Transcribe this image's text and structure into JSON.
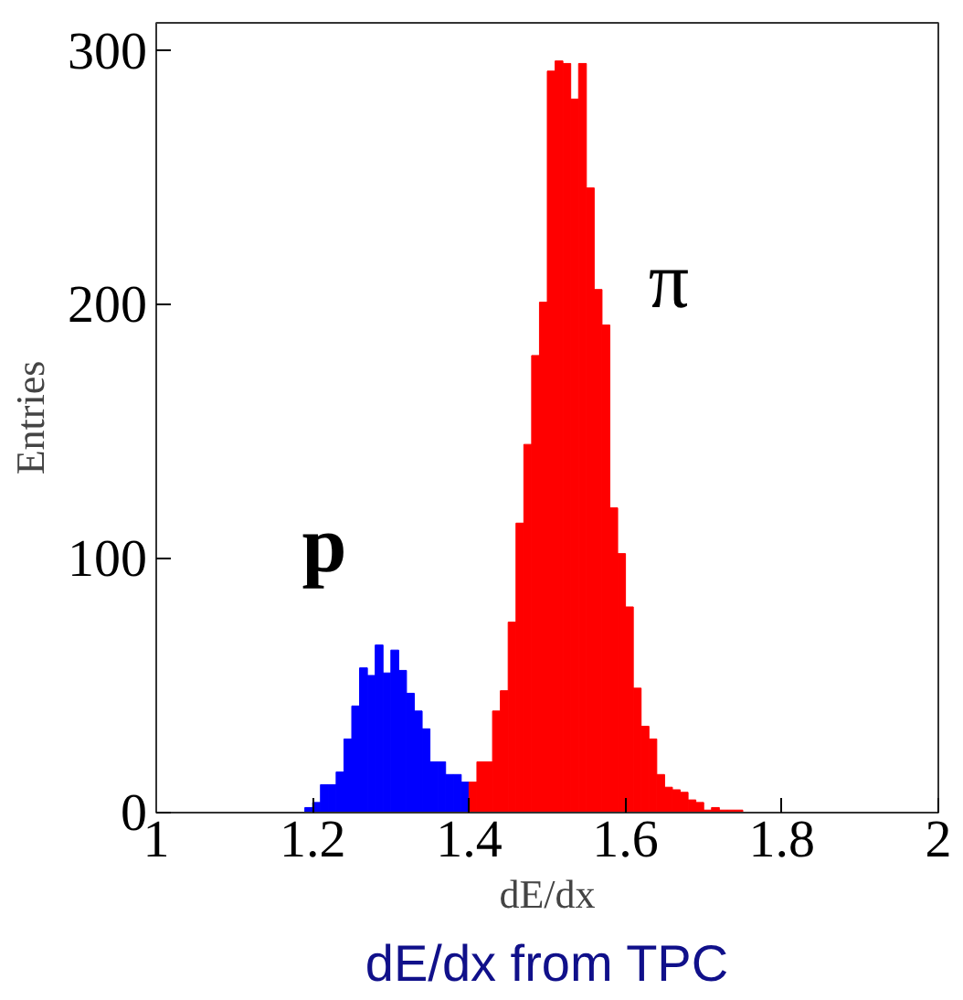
{
  "chart_data": {
    "type": "histogram",
    "xlabel": "dE/dx",
    "ylabel": "Entries",
    "annotations": [
      "dE/dx from TPC"
    ],
    "bins": [
      1.19,
      1.2,
      1.21,
      1.22,
      1.23,
      1.24,
      1.25,
      1.26,
      1.27,
      1.28,
      1.29,
      1.3,
      1.31,
      1.32,
      1.33,
      1.34,
      1.35,
      1.36,
      1.37,
      1.38,
      1.39,
      1.4,
      1.41,
      1.42,
      1.43,
      1.44,
      1.45,
      1.46,
      1.47,
      1.48,
      1.49,
      1.5,
      1.51,
      1.52,
      1.53,
      1.54,
      1.55,
      1.56,
      1.57,
      1.58,
      1.59,
      1.6,
      1.61,
      1.62,
      1.63,
      1.64,
      1.65,
      1.66,
      1.67,
      1.68,
      1.69,
      1.7,
      1.71,
      1.72,
      1.73,
      1.74,
      1.75
    ],
    "series": [
      {
        "name": "p",
        "color": "#0000ff",
        "values": [
          2,
          4,
          11,
          11,
          16,
          29,
          42,
          57,
          54,
          66,
          55,
          64,
          56,
          47,
          40,
          33,
          20,
          20,
          15,
          15,
          12,
          null,
          null,
          null,
          null,
          null,
          null,
          null,
          null,
          null,
          null,
          null,
          null,
          null,
          null,
          null,
          null,
          null,
          null,
          null,
          null,
          null,
          null,
          null,
          null,
          null,
          null,
          null,
          null,
          null,
          null,
          null,
          null,
          null,
          null,
          null
        ]
      },
      {
        "name": "π",
        "color": "#ff0000",
        "values": [
          null,
          null,
          null,
          null,
          null,
          null,
          null,
          null,
          null,
          null,
          null,
          null,
          null,
          null,
          null,
          null,
          null,
          null,
          null,
          null,
          null,
          12,
          20,
          20,
          40,
          48,
          75,
          114,
          145,
          180,
          201,
          292,
          296,
          295,
          281,
          295,
          246,
          206,
          192,
          120,
          102,
          81,
          49,
          34,
          29,
          15,
          10,
          9,
          8,
          5,
          4,
          1,
          2,
          1,
          1,
          1
        ]
      }
    ],
    "xlim": [
      1,
      2
    ],
    "ylim": [
      0,
      311
    ],
    "xticks": [
      1,
      1.2,
      1.4,
      1.6,
      1.8,
      2
    ],
    "yticks": [
      0,
      100,
      200,
      300
    ],
    "grid": false
  }
}
